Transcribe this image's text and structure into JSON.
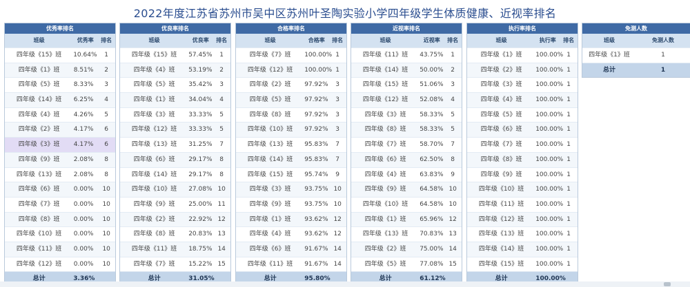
{
  "page": {
    "title": "2022年度江苏省苏州市吴中区苏州叶圣陶实验小学四年级学生体质健康、近视率排名"
  },
  "headers": {
    "class": "班级",
    "rank": "排名"
  },
  "tables": [
    {
      "title": "优秀率排名",
      "metric": "优秀率",
      "rows": [
        {
          "class": "四年级《15》班",
          "value": "10.64%",
          "rank": "1"
        },
        {
          "class": "四年级《1》班",
          "value": "8.51%",
          "rank": "2"
        },
        {
          "class": "四年级《5》班",
          "value": "8.33%",
          "rank": "3"
        },
        {
          "class": "四年级《14》班",
          "value": "6.25%",
          "rank": "4"
        },
        {
          "class": "四年级《4》班",
          "value": "4.26%",
          "rank": "5"
        },
        {
          "class": "四年级《2》班",
          "value": "4.17%",
          "rank": "6"
        },
        {
          "class": "四年级《3》班",
          "value": "4.17%",
          "rank": "6"
        },
        {
          "class": "四年级《9》班",
          "value": "2.08%",
          "rank": "8"
        },
        {
          "class": "四年级《13》班",
          "value": "2.08%",
          "rank": "8"
        },
        {
          "class": "四年级《6》班",
          "value": "0.00%",
          "rank": "10"
        },
        {
          "class": "四年级《7》班",
          "value": "0.00%",
          "rank": "10"
        },
        {
          "class": "四年级《8》班",
          "value": "0.00%",
          "rank": "10"
        },
        {
          "class": "四年级《10》班",
          "value": "0.00%",
          "rank": "10"
        },
        {
          "class": "四年级《11》班",
          "value": "0.00%",
          "rank": "10"
        },
        {
          "class": "四年级《12》班",
          "value": "0.00%",
          "rank": "10"
        }
      ],
      "total": {
        "label": "总计",
        "value": "3.36%"
      }
    },
    {
      "title": "优良率排名",
      "metric": "优良率",
      "rows": [
        {
          "class": "四年级《15》班",
          "value": "57.45%",
          "rank": "1"
        },
        {
          "class": "四年级《4》班",
          "value": "53.19%",
          "rank": "2"
        },
        {
          "class": "四年级《5》班",
          "value": "35.42%",
          "rank": "3"
        },
        {
          "class": "四年级《1》班",
          "value": "34.04%",
          "rank": "4"
        },
        {
          "class": "四年级《3》班",
          "value": "33.33%",
          "rank": "5"
        },
        {
          "class": "四年级《12》班",
          "value": "33.33%",
          "rank": "5"
        },
        {
          "class": "四年级《13》班",
          "value": "31.25%",
          "rank": "7"
        },
        {
          "class": "四年级《6》班",
          "value": "29.17%",
          "rank": "8"
        },
        {
          "class": "四年级《14》班",
          "value": "29.17%",
          "rank": "8"
        },
        {
          "class": "四年级《10》班",
          "value": "27.08%",
          "rank": "10"
        },
        {
          "class": "四年级《9》班",
          "value": "25.00%",
          "rank": "11"
        },
        {
          "class": "四年级《2》班",
          "value": "22.92%",
          "rank": "12"
        },
        {
          "class": "四年级《8》班",
          "value": "20.83%",
          "rank": "13"
        },
        {
          "class": "四年级《11》班",
          "value": "18.75%",
          "rank": "14"
        },
        {
          "class": "四年级《7》班",
          "value": "15.22%",
          "rank": "15"
        }
      ],
      "total": {
        "label": "总计",
        "value": "31.05%"
      }
    },
    {
      "title": "合格率排名",
      "metric": "合格率",
      "rows": [
        {
          "class": "四年级《7》班",
          "value": "100.00%",
          "rank": "1"
        },
        {
          "class": "四年级《12》班",
          "value": "100.00%",
          "rank": "1"
        },
        {
          "class": "四年级《2》班",
          "value": "97.92%",
          "rank": "3"
        },
        {
          "class": "四年级《5》班",
          "value": "97.92%",
          "rank": "3"
        },
        {
          "class": "四年级《8》班",
          "value": "97.92%",
          "rank": "3"
        },
        {
          "class": "四年级《10》班",
          "value": "97.92%",
          "rank": "3"
        },
        {
          "class": "四年级《13》班",
          "value": "95.83%",
          "rank": "7"
        },
        {
          "class": "四年级《14》班",
          "value": "95.83%",
          "rank": "7"
        },
        {
          "class": "四年级《15》班",
          "value": "95.74%",
          "rank": "9"
        },
        {
          "class": "四年级《3》班",
          "value": "93.75%",
          "rank": "10"
        },
        {
          "class": "四年级《9》班",
          "value": "93.75%",
          "rank": "10"
        },
        {
          "class": "四年级《1》班",
          "value": "93.62%",
          "rank": "12"
        },
        {
          "class": "四年级《4》班",
          "value": "93.62%",
          "rank": "12"
        },
        {
          "class": "四年级《6》班",
          "value": "91.67%",
          "rank": "14"
        },
        {
          "class": "四年级《11》班",
          "value": "91.67%",
          "rank": "14"
        }
      ],
      "total": {
        "label": "总计",
        "value": "95.80%"
      }
    },
    {
      "title": "近视率排名",
      "metric": "近视率",
      "rows": [
        {
          "class": "四年级《11》班",
          "value": "43.75%",
          "rank": "1"
        },
        {
          "class": "四年级《14》班",
          "value": "50.00%",
          "rank": "2"
        },
        {
          "class": "四年级《15》班",
          "value": "51.06%",
          "rank": "3"
        },
        {
          "class": "四年级《12》班",
          "value": "52.08%",
          "rank": "4"
        },
        {
          "class": "四年级《3》班",
          "value": "58.33%",
          "rank": "5"
        },
        {
          "class": "四年级《8》班",
          "value": "58.33%",
          "rank": "5"
        },
        {
          "class": "四年级《7》班",
          "value": "58.70%",
          "rank": "7"
        },
        {
          "class": "四年级《6》班",
          "value": "62.50%",
          "rank": "8"
        },
        {
          "class": "四年级《4》班",
          "value": "63.83%",
          "rank": "9"
        },
        {
          "class": "四年级《9》班",
          "value": "64.58%",
          "rank": "10"
        },
        {
          "class": "四年级《10》班",
          "value": "64.58%",
          "rank": "10"
        },
        {
          "class": "四年级《1》班",
          "value": "65.96%",
          "rank": "12"
        },
        {
          "class": "四年级《13》班",
          "value": "70.83%",
          "rank": "13"
        },
        {
          "class": "四年级《2》班",
          "value": "75.00%",
          "rank": "14"
        },
        {
          "class": "四年级《5》班",
          "value": "77.08%",
          "rank": "15"
        }
      ],
      "total": {
        "label": "总计",
        "value": "61.12%"
      }
    },
    {
      "title": "执行率排名",
      "metric": "执行率",
      "rows": [
        {
          "class": "四年级《1》班",
          "value": "100.00%",
          "rank": "1"
        },
        {
          "class": "四年级《2》班",
          "value": "100.00%",
          "rank": "1"
        },
        {
          "class": "四年级《3》班",
          "value": "100.00%",
          "rank": "1"
        },
        {
          "class": "四年级《4》班",
          "value": "100.00%",
          "rank": "1"
        },
        {
          "class": "四年级《5》班",
          "value": "100.00%",
          "rank": "1"
        },
        {
          "class": "四年级《6》班",
          "value": "100.00%",
          "rank": "1"
        },
        {
          "class": "四年级《7》班",
          "value": "100.00%",
          "rank": "1"
        },
        {
          "class": "四年级《8》班",
          "value": "100.00%",
          "rank": "1"
        },
        {
          "class": "四年级《9》班",
          "value": "100.00%",
          "rank": "1"
        },
        {
          "class": "四年级《10》班",
          "value": "100.00%",
          "rank": "1"
        },
        {
          "class": "四年级《11》班",
          "value": "100.00%",
          "rank": "1"
        },
        {
          "class": "四年级《12》班",
          "value": "100.00%",
          "rank": "1"
        },
        {
          "class": "四年级《13》班",
          "value": "100.00%",
          "rank": "1"
        },
        {
          "class": "四年级《14》班",
          "value": "100.00%",
          "rank": "1"
        },
        {
          "class": "四年级《15》班",
          "value": "100.00%",
          "rank": "1"
        }
      ],
      "total": {
        "label": "总计",
        "value": "100.00%"
      }
    }
  ],
  "exempt": {
    "title": "免测人数",
    "metric": "免测人数",
    "rows": [
      {
        "class": "四年级《1》班",
        "value": "1"
      }
    ],
    "total": {
      "label": "总计",
      "value": "1"
    }
  },
  "highlight": {
    "table": 0,
    "row": 6
  },
  "colors": {
    "header_bg": "#3f6aa5",
    "colhdr_bg": "#d4e2f1",
    "total_bg": "#c3d5e9",
    "highlight_bg": "#e2dcf5",
    "title": "#2a4d8f"
  }
}
